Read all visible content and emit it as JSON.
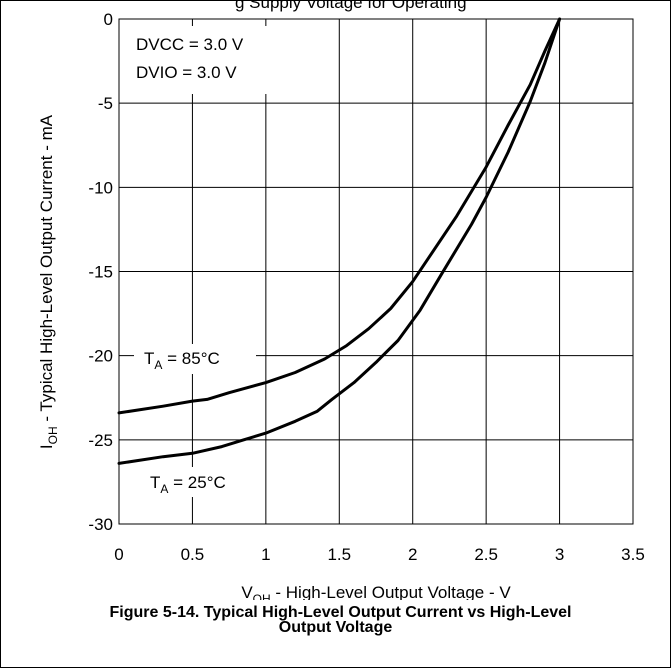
{
  "page_header_fragment": "g Supply Voltage for Operating",
  "caption": {
    "line1": "Figure 5-14. Typical High-Level Output Current vs High-Level",
    "line2": "Output Voltage"
  },
  "chart_data": {
    "type": "line",
    "ylabel": {
      "prefix": "I",
      "sub": "OH",
      "rest": " - Typical High-Level Output Current - mA"
    },
    "xlabel": {
      "prefix": "V",
      "sub": "OH",
      "rest": " - High-Level Output Voltage - V"
    },
    "xlim": [
      0,
      3.5
    ],
    "ylim": [
      -30,
      0
    ],
    "xticks": [
      "0",
      "0.5",
      "1",
      "1.5",
      "2",
      "2.5",
      "3",
      "3.5"
    ],
    "yticks": [
      "0",
      "-5",
      "-10",
      "-15",
      "-20",
      "-25",
      "-30"
    ],
    "grid": true,
    "conditions": [
      "DVCC = 3.0 V",
      "DVIO = 3.0 V"
    ],
    "series": [
      {
        "name": "T_A = 85°C",
        "label": {
          "prefix": "T",
          "sub": "A",
          "rest": " = 85°C"
        },
        "x": [
          0,
          0.3,
          0.5,
          0.6,
          0.75,
          1.0,
          1.2,
          1.4,
          1.55,
          1.7,
          1.85,
          2.0,
          2.1,
          2.3,
          2.5,
          2.65,
          2.8,
          2.9,
          3.0
        ],
        "y": [
          -23.4,
          -23.0,
          -22.7,
          -22.6,
          -22.2,
          -21.6,
          -21.0,
          -20.2,
          -19.4,
          -18.4,
          -17.2,
          -15.6,
          -14.3,
          -11.7,
          -8.8,
          -6.3,
          -3.9,
          -1.9,
          0
        ]
      },
      {
        "name": "T_A = 25°C",
        "label": {
          "prefix": "T",
          "sub": "A",
          "rest": " = 25°C"
        },
        "x": [
          0,
          0.3,
          0.5,
          0.7,
          0.85,
          1.0,
          1.2,
          1.35,
          1.45,
          1.6,
          1.75,
          1.9,
          2.05,
          2.2,
          2.4,
          2.5,
          2.65,
          2.8,
          2.9,
          3.0
        ],
        "y": [
          -26.4,
          -26.0,
          -25.8,
          -25.4,
          -25.0,
          -24.6,
          -23.9,
          -23.3,
          -22.6,
          -21.6,
          -20.4,
          -19.1,
          -17.3,
          -15.1,
          -12.2,
          -10.6,
          -7.9,
          -4.9,
          -2.6,
          0
        ]
      }
    ]
  }
}
